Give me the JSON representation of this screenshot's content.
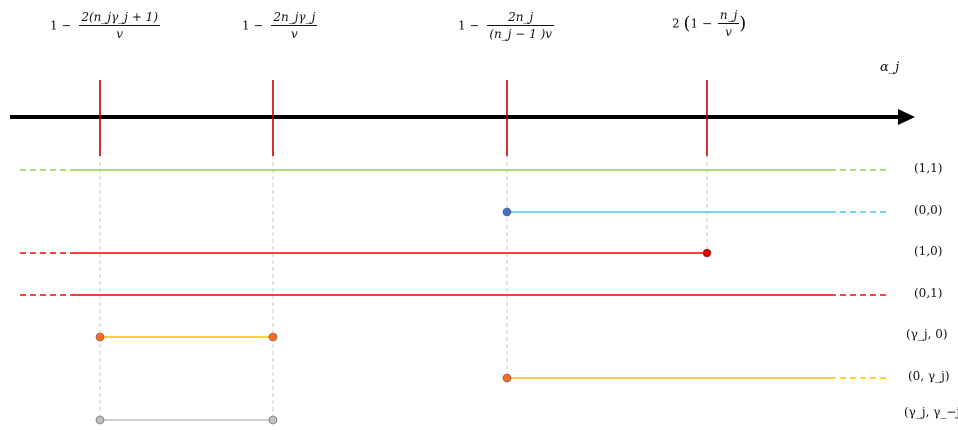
{
  "axis": {
    "label": "α_j",
    "ticks": [
      {
        "lead": "1  −",
        "num": "2(n_jγ_j + 1)",
        "den": "v"
      },
      {
        "lead": "1  −",
        "num": "2n_jγ_j",
        "den": "v"
      },
      {
        "lead": "1  −",
        "num": "2n_j",
        "den": "(n_j − 1 )v"
      },
      {
        "lead": "2",
        "num": "n_j",
        "den": "v",
        "wrapped": "(1 − ·)"
      }
    ]
  },
  "rows": [
    {
      "label": "(1,1)",
      "color": "#92d050"
    },
    {
      "label": "(0,0)",
      "color": "#4fc3f7"
    },
    {
      "label": "(1,0)",
      "color": "#ff0000"
    },
    {
      "label": "(0,1)",
      "color": "#ff0000"
    },
    {
      "label": "(γ_j, 0)",
      "color": "#ffc000"
    },
    {
      "label": "(0, γ_j)",
      "color": "#ffc000"
    },
    {
      "label": "(γ_j, γ_−j)",
      "color": "#bfbfbf"
    }
  ],
  "colors": {
    "axis": "#000000",
    "tick": "#c00000",
    "guide": "#c8c8c8",
    "dot_blue": "#4472c4",
    "dot_red": "#e00000",
    "dot_orange": "#ff6a21",
    "dot_gray": "#bfbfbf"
  }
}
